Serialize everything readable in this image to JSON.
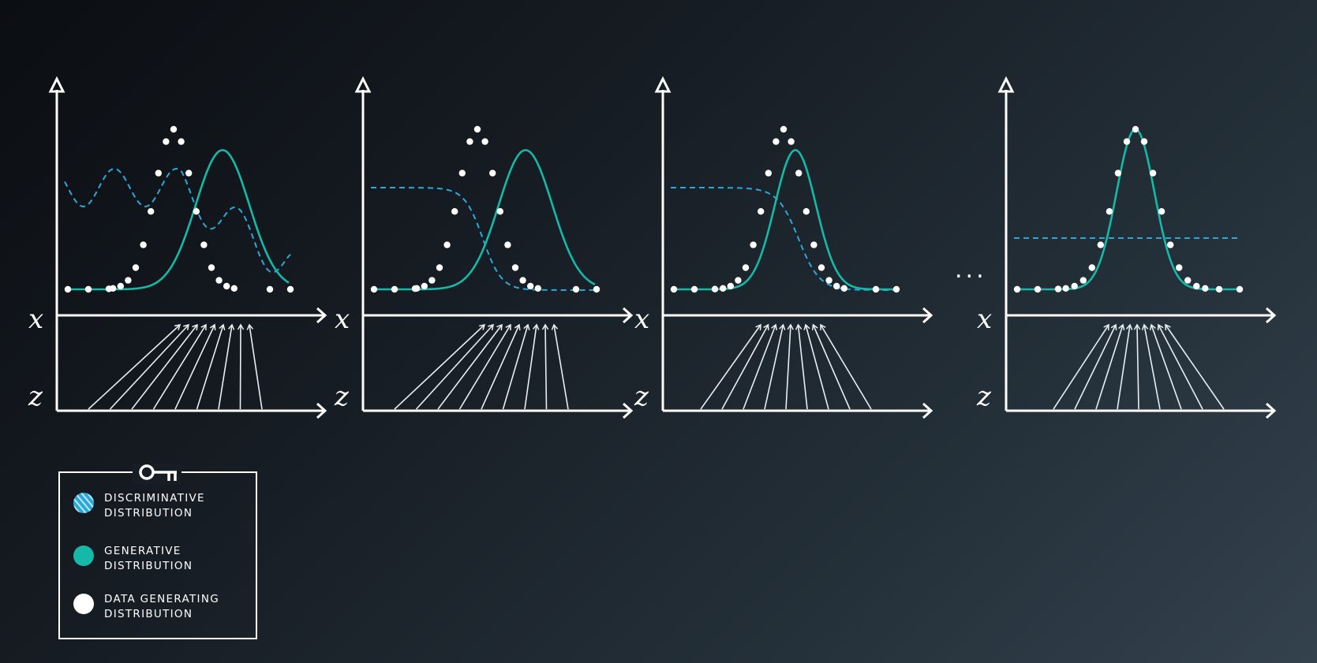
{
  "colors": {
    "discriminative": "#2aa9d8",
    "generative": "#16b9a7",
    "data": "#ffffff"
  },
  "panels": [
    {
      "x_axis_label": "x",
      "z_axis_label": "z"
    },
    {
      "x_axis_label": "x",
      "z_axis_label": "z"
    },
    {
      "x_axis_label": "x",
      "z_axis_label": "z"
    },
    {
      "x_axis_label": "x",
      "z_axis_label": "z"
    }
  ],
  "ellipsis": "...",
  "legend": {
    "key_icon": "key-icon",
    "items": [
      {
        "line1": "DISCRIMINATIVE",
        "line2": "DISTRIBUTION",
        "marker": "striped-circle"
      },
      {
        "line1": "GENERATIVE",
        "line2": "DISTRIBUTION",
        "marker": "solid-circle"
      },
      {
        "line1": "DATA GENERATING",
        "line2": "DISTRIBUTION",
        "marker": "white-circle"
      }
    ]
  }
}
